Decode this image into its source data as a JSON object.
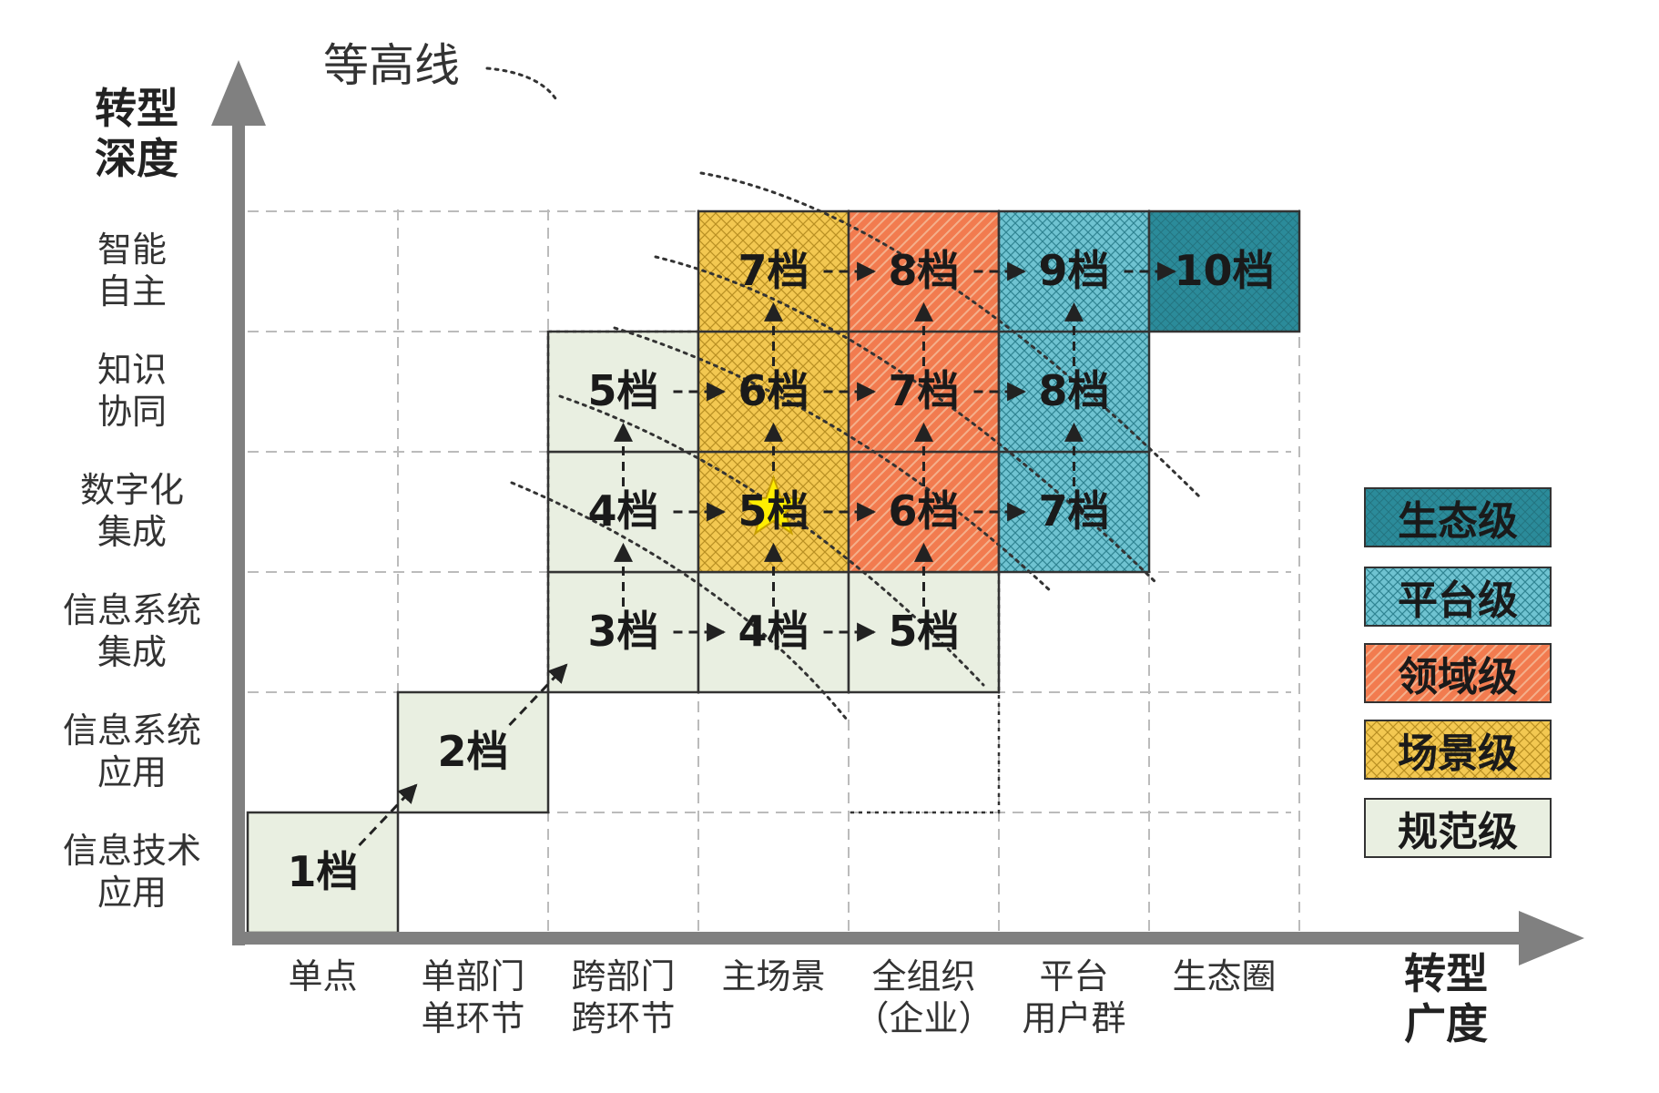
{
  "contour_label": "等高线",
  "y_axis": {
    "title": "转型\n深度",
    "levels": [
      "信息技术\n应用",
      "信息系统\n应用",
      "信息系统\n集成",
      "数字化\n集成",
      "知识\n协同",
      "智能\n自主"
    ]
  },
  "x_axis": {
    "title": "转型\n广度",
    "levels": [
      "单点",
      "单部门\n单环节",
      "跨部门\n跨环节",
      "主场景",
      "全组织\n（企业）",
      "平台\n用户群",
      "生态圈"
    ]
  },
  "legend": [
    {
      "key": "eco",
      "label": "生态级",
      "color": "#2b8b9a"
    },
    {
      "key": "plat",
      "label": "平台级",
      "color": "#6fc3d1"
    },
    {
      "key": "dom",
      "label": "领域级",
      "color": "#f27b4f"
    },
    {
      "key": "scene",
      "label": "场景级",
      "color": "#f3c851"
    },
    {
      "key": "norm",
      "label": "规范级",
      "color": "#e9efe1"
    }
  ],
  "cells": [
    {
      "col": 0,
      "row": 0,
      "label": "1档",
      "kind": "norm"
    },
    {
      "col": 1,
      "row": 1,
      "label": "2档",
      "kind": "norm"
    },
    {
      "col": 2,
      "row": 2,
      "label": "3档",
      "kind": "norm"
    },
    {
      "col": 3,
      "row": 2,
      "label": "4档",
      "kind": "norm"
    },
    {
      "col": 4,
      "row": 2,
      "label": "5档",
      "kind": "norm"
    },
    {
      "col": 2,
      "row": 3,
      "label": "4档",
      "kind": "norm"
    },
    {
      "col": 3,
      "row": 3,
      "label": "5档",
      "kind": "scene"
    },
    {
      "col": 4,
      "row": 3,
      "label": "6档",
      "kind": "dom"
    },
    {
      "col": 5,
      "row": 3,
      "label": "7档",
      "kind": "plat"
    },
    {
      "col": 2,
      "row": 4,
      "label": "5档",
      "kind": "norm"
    },
    {
      "col": 3,
      "row": 4,
      "label": "6档",
      "kind": "scene"
    },
    {
      "col": 4,
      "row": 4,
      "label": "7档",
      "kind": "dom"
    },
    {
      "col": 5,
      "row": 4,
      "label": "8档",
      "kind": "plat"
    },
    {
      "col": 3,
      "row": 5,
      "label": "7档",
      "kind": "scene"
    },
    {
      "col": 4,
      "row": 5,
      "label": "8档",
      "kind": "dom"
    },
    {
      "col": 5,
      "row": 5,
      "label": "9档",
      "kind": "plat"
    },
    {
      "col": 6,
      "row": 5,
      "label": "10档",
      "kind": "eco"
    }
  ],
  "star": {
    "col": 3,
    "row": 3
  }
}
